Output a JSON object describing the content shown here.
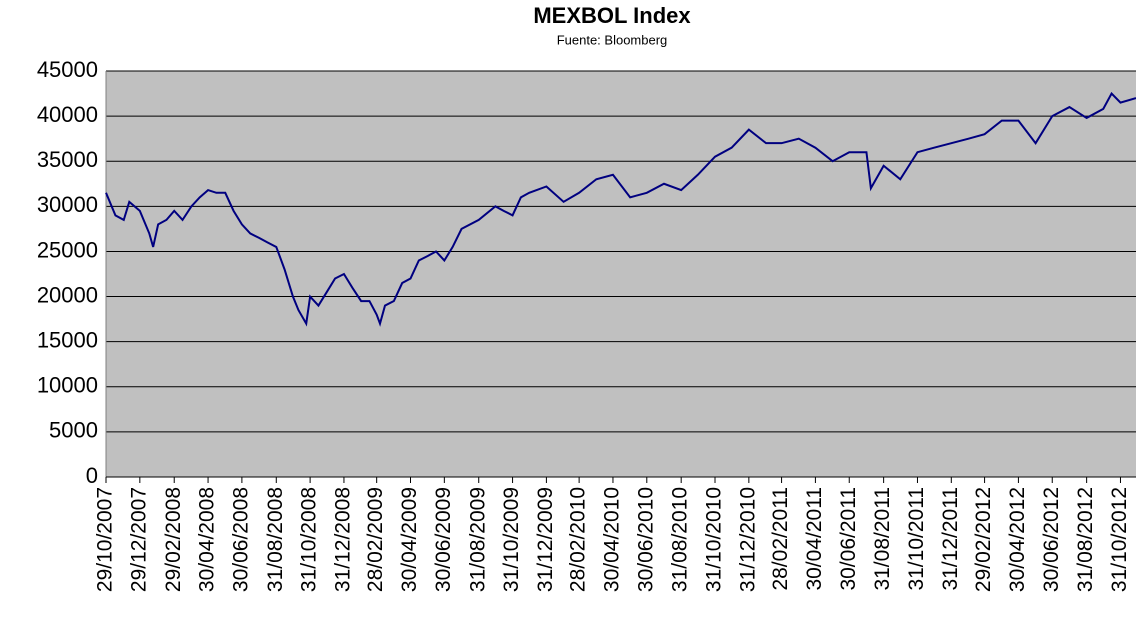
{
  "chart_data": {
    "type": "line",
    "title": "MEXBOL Index",
    "subtitle": "Fuente: Bloomberg",
    "x": [
      "29/10/2007",
      "15/11/2007",
      "30/11/2007",
      "10/12/2007",
      "29/12/2007",
      "15/01/2008",
      "22/01/2008",
      "31/01/2008",
      "15/02/2008",
      "29/02/2008",
      "15/03/2008",
      "31/03/2008",
      "15/04/2008",
      "30/04/2008",
      "15/05/2008",
      "31/05/2008",
      "15/06/2008",
      "30/06/2008",
      "15/07/2008",
      "31/07/2008",
      "15/08/2008",
      "31/08/2008",
      "15/09/2008",
      "30/09/2008",
      "10/10/2008",
      "24/10/2008",
      "31/10/2008",
      "15/11/2008",
      "30/11/2008",
      "15/12/2008",
      "31/12/2008",
      "15/01/2009",
      "31/01/2009",
      "15/02/2009",
      "28/02/2009",
      "06/03/2009",
      "15/03/2009",
      "31/03/2009",
      "15/04/2009",
      "30/04/2009",
      "15/05/2009",
      "31/05/2009",
      "15/06/2009",
      "30/06/2009",
      "15/07/2009",
      "31/07/2009",
      "31/08/2009",
      "30/09/2009",
      "15/10/2009",
      "31/10/2009",
      "15/11/2009",
      "30/11/2009",
      "31/12/2009",
      "31/01/2010",
      "28/02/2010",
      "31/03/2010",
      "30/04/2010",
      "31/05/2010",
      "30/06/2010",
      "31/07/2010",
      "31/08/2010",
      "30/09/2010",
      "31/10/2010",
      "30/11/2010",
      "31/12/2010",
      "31/01/2011",
      "28/02/2011",
      "31/03/2011",
      "30/04/2011",
      "31/05/2011",
      "30/06/2011",
      "31/07/2011",
      "08/08/2011",
      "31/08/2011",
      "30/09/2011",
      "31/10/2011",
      "30/11/2011",
      "31/12/2011",
      "31/01/2012",
      "29/02/2012",
      "31/03/2012",
      "30/04/2012",
      "31/05/2012",
      "30/06/2012",
      "31/07/2012",
      "31/08/2012",
      "30/09/2012",
      "15/10/2012",
      "31/10/2012",
      "28/11/2012"
    ],
    "series": [
      {
        "name": "MEXBOL",
        "color": "#000080",
        "values": [
          31500,
          29000,
          28500,
          30500,
          29500,
          27000,
          25500,
          28000,
          28500,
          29500,
          28500,
          30000,
          31000,
          31800,
          31500,
          31500,
          29500,
          28000,
          27000,
          26500,
          26000,
          25500,
          23000,
          20000,
          18500,
          17000,
          20000,
          19000,
          20500,
          22000,
          22500,
          21000,
          19500,
          19500,
          18000,
          17000,
          19000,
          19500,
          21500,
          22000,
          24000,
          24500,
          25000,
          24000,
          25500,
          27500,
          28500,
          30000,
          29500,
          29000,
          31000,
          31500,
          32200,
          30500,
          31500,
          33000,
          33500,
          31000,
          31500,
          32500,
          31800,
          33500,
          35500,
          36500,
          38500,
          37000,
          37000,
          37500,
          36500,
          35000,
          36000,
          36000,
          32000,
          34500,
          33000,
          36000,
          36500,
          37000,
          37500,
          38000,
          39500,
          39500,
          37000,
          40000,
          41000,
          39800,
          40800,
          42500,
          41500,
          42000
        ]
      }
    ],
    "xlim": [
      "29/10/2007",
      "28/11/2012"
    ],
    "xticks": [
      "29/10/2007",
      "29/12/2007",
      "29/02/2008",
      "30/04/2008",
      "30/06/2008",
      "31/08/2008",
      "31/10/2008",
      "31/12/2008",
      "28/02/2009",
      "30/04/2009",
      "30/06/2009",
      "31/08/2009",
      "31/10/2009",
      "31/12/2009",
      "28/02/2010",
      "30/04/2010",
      "30/06/2010",
      "31/08/2010",
      "31/10/2010",
      "31/12/2010",
      "28/02/2011",
      "30/04/2011",
      "30/06/2011",
      "31/08/2011",
      "31/10/2011",
      "31/12/2011",
      "29/02/2012",
      "30/04/2012",
      "30/06/2012",
      "31/08/2012",
      "31/10/2012"
    ],
    "ylim": [
      0,
      45000
    ],
    "yticks": [
      0,
      5000,
      10000,
      15000,
      20000,
      25000,
      30000,
      35000,
      40000,
      45000
    ],
    "grid": true
  }
}
